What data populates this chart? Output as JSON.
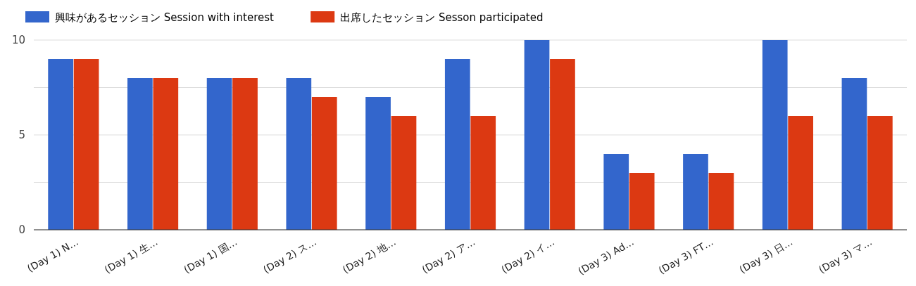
{
  "chart_data": {
    "type": "bar",
    "categories": [
      "(Day 1) N…",
      "(Day 1) 生…",
      "(Day 1) 国…",
      "(Day 2) ス…",
      "(Day 2) 地…",
      "(Day 2) ア…",
      "(Day 2) イ…",
      "(Day 3) Ad…",
      "(Day 3) FT…",
      "(Day 3) 日…",
      "(Day 3) マ…"
    ],
    "series": [
      {
        "name": "興味があるセッション Session with interest",
        "color": "#3366cc",
        "values": [
          9,
          8,
          8,
          8,
          7,
          9,
          10,
          4,
          4,
          10,
          8
        ]
      },
      {
        "name": "出席したセッション Sesson participated",
        "color": "#dc3912",
        "values": [
          9,
          8,
          8,
          7,
          6,
          6,
          9,
          3,
          3,
          6,
          6
        ]
      }
    ],
    "ylim": [
      0,
      10
    ],
    "yticks": [
      0,
      {
        "value": 2.5,
        "label": null
      },
      5,
      {
        "value": 7.5,
        "label": null
      },
      10
    ],
    "grid": "y",
    "legend": "top left"
  }
}
